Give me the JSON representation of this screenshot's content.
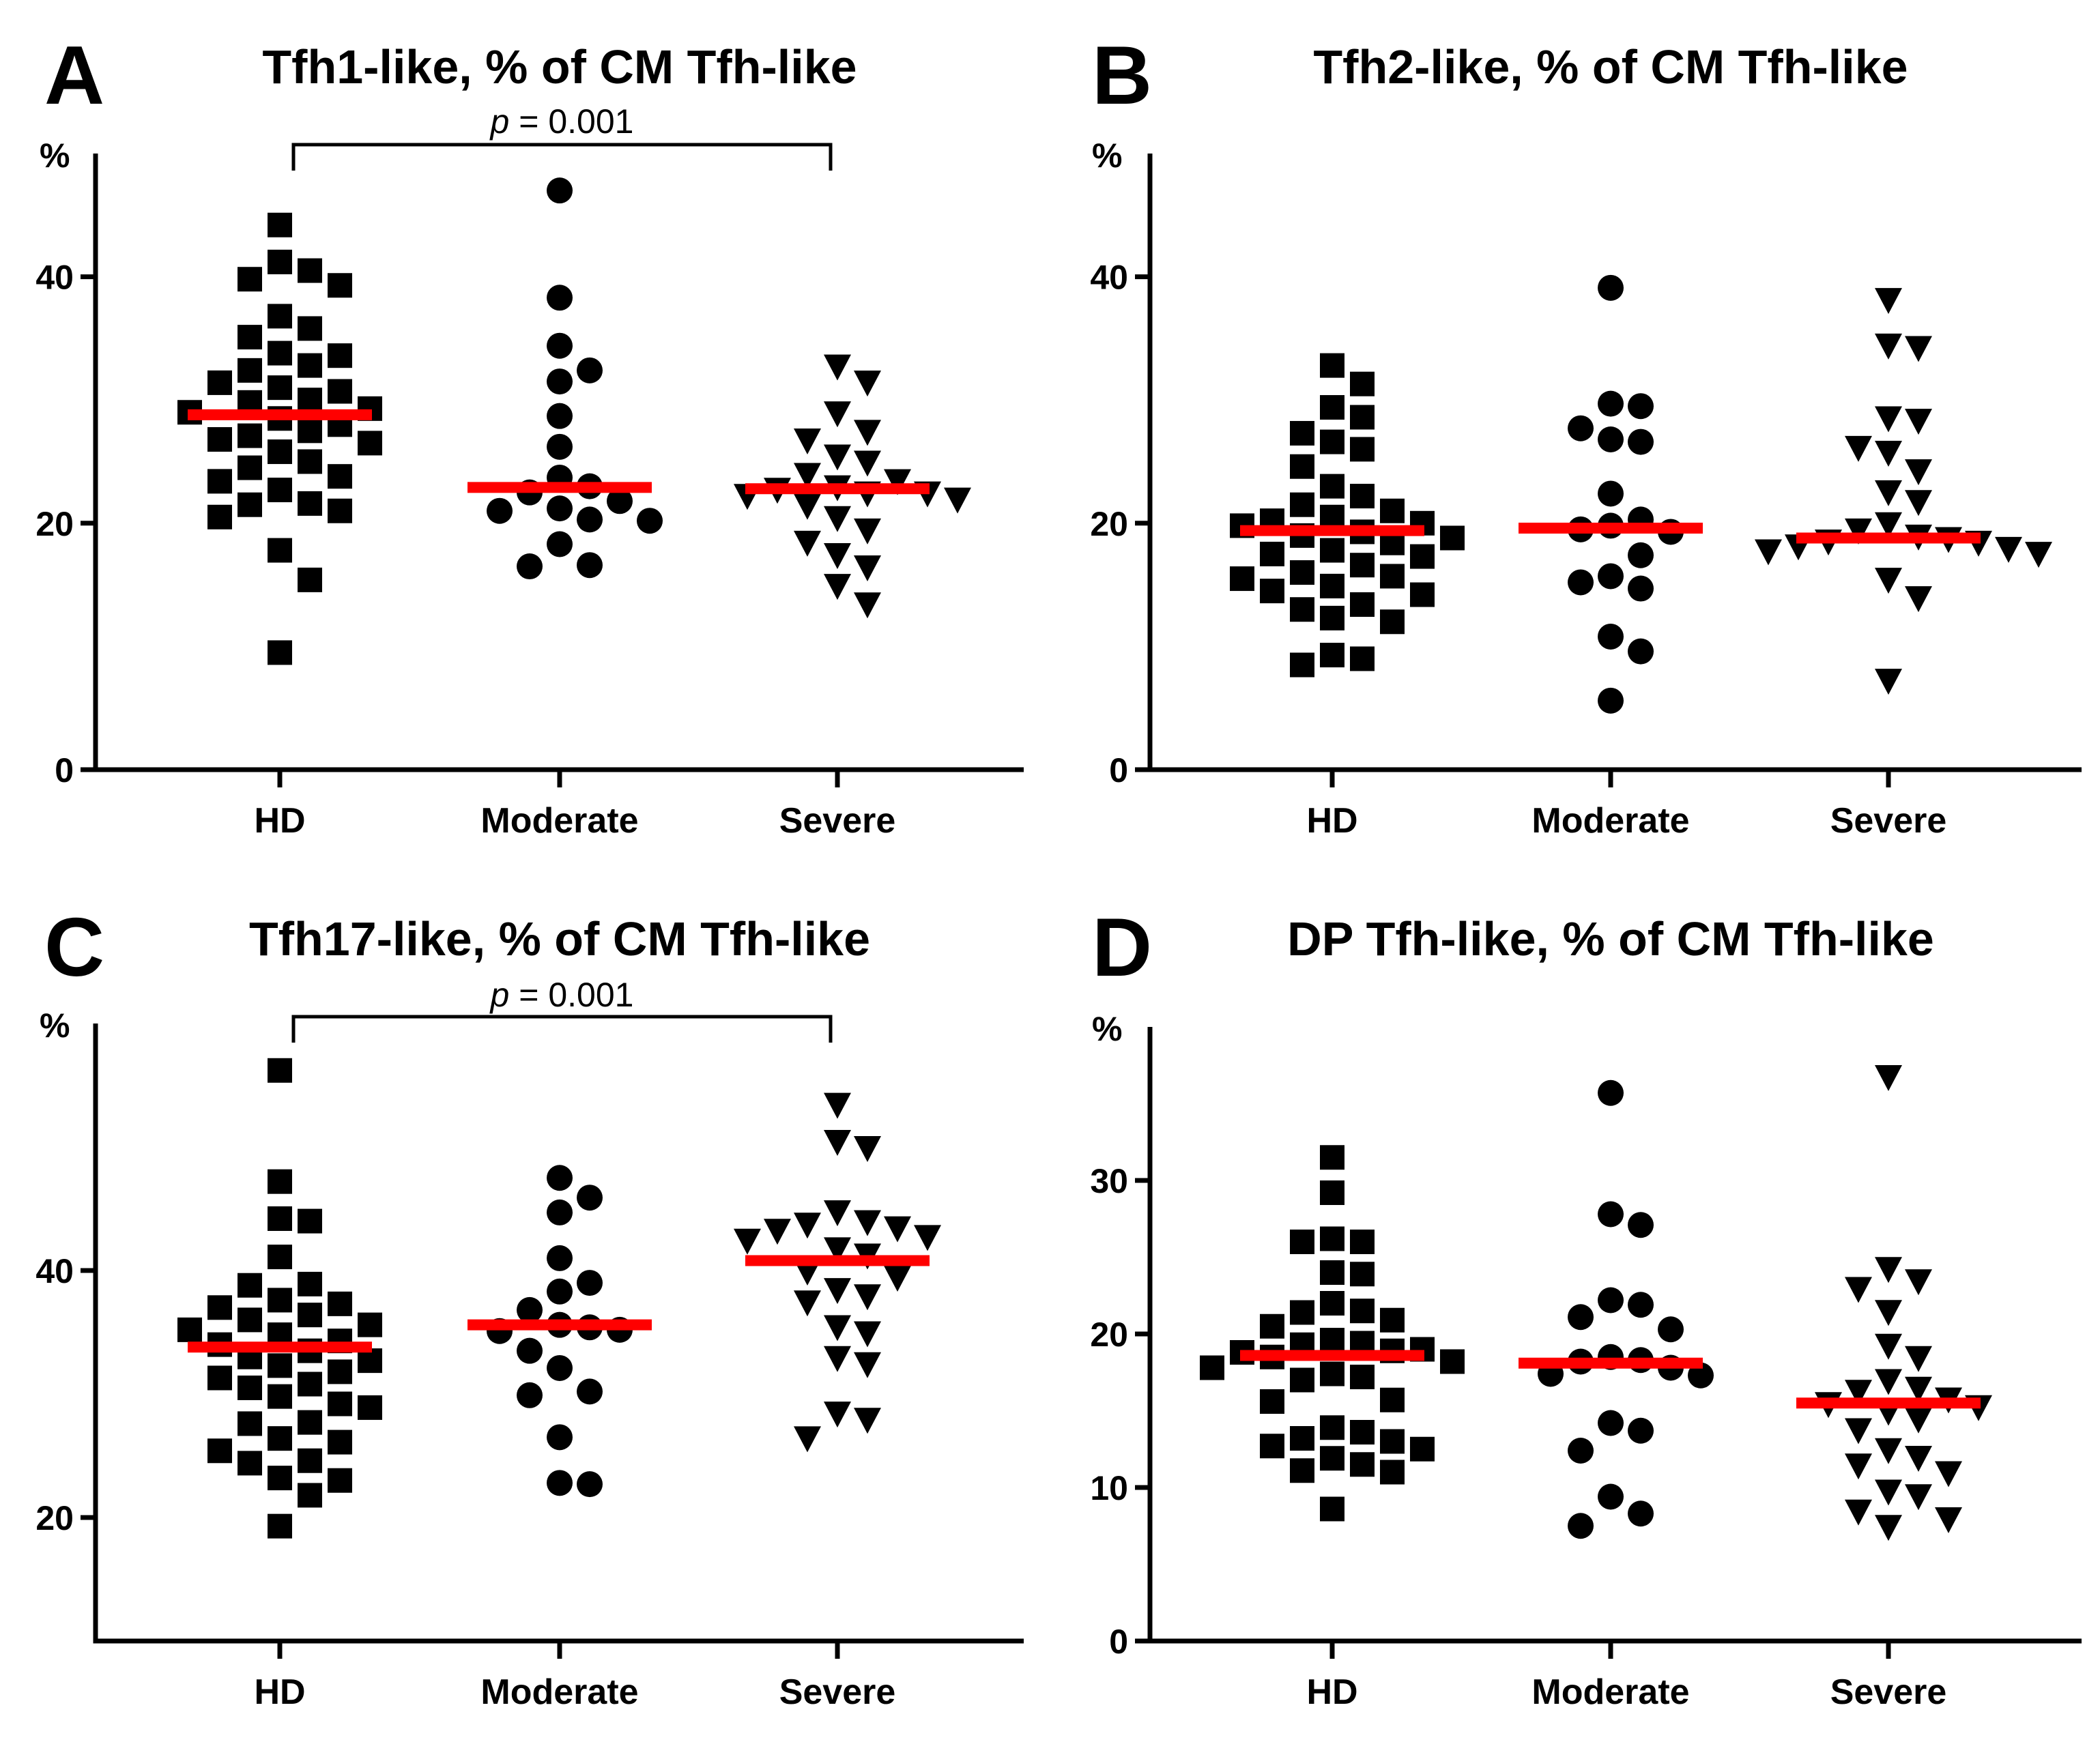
{
  "colors": {
    "points": "#000000",
    "median": "#ff0000",
    "axis": "#000000"
  },
  "chart_data": [
    {
      "type": "scatter",
      "letter": "A",
      "title": "Tfh1-like, % of CM Tfh-like",
      "ylabel": "%",
      "categories": [
        "HD",
        "Moderate",
        "Severe"
      ],
      "ylim": [
        0,
        50
      ],
      "yticks": [
        0,
        20,
        40
      ],
      "ytick_labels": [
        "0",
        "20",
        "40"
      ],
      "marker_symbols": [
        "square-icon",
        "circle-icon",
        "triangle-down-icon"
      ],
      "significance": {
        "text": "p = 0.001",
        "italic": "p",
        "from": "HD",
        "to": "Severe"
      },
      "series": [
        {
          "name": "HD",
          "median": 28.8,
          "values": [
            44.2,
            41.2,
            40.5,
            39.8,
            39.3,
            36.8,
            35.8,
            35.1,
            33.8,
            33.6,
            32.8,
            32.4,
            31.4,
            31.0,
            30.7,
            30.0,
            29.8,
            29.3,
            29.0,
            28.5,
            28.0,
            27.5,
            27.1,
            26.8,
            26.5,
            25.8,
            25.0,
            24.5,
            23.8,
            23.4,
            22.7,
            21.6,
            21.5,
            21.0,
            20.5,
            17.8,
            15.4,
            9.5
          ]
        },
        {
          "name": "Moderate",
          "median": 22.9,
          "values": [
            47.0,
            38.3,
            34.4,
            32.4,
            31.5,
            28.7,
            26.2,
            23.7,
            23.0,
            22.5,
            21.8,
            21.2,
            21.0,
            20.3,
            20.2,
            18.3,
            16.6,
            16.5
          ]
        },
        {
          "name": "Severe",
          "median": 22.8,
          "values": [
            32.8,
            31.5,
            29.0,
            27.5,
            26.8,
            25.5,
            25.0,
            24.0,
            23.5,
            23.0,
            22.8,
            22.5,
            22.5,
            22.3,
            22.0,
            21.5,
            20.5,
            19.5,
            18.5,
            17.5,
            16.5,
            15.0,
            13.5
          ]
        }
      ]
    },
    {
      "type": "scatter",
      "letter": "B",
      "title": "Tfh2-like, % of CM Tfh-like",
      "ylabel": "%",
      "categories": [
        "HD",
        "Moderate",
        "Severe"
      ],
      "ylim": [
        0,
        50
      ],
      "yticks": [
        0,
        20,
        40
      ],
      "ytick_labels": [
        "0",
        "20",
        "40"
      ],
      "marker_symbols": [
        "square-icon",
        "circle-icon",
        "triangle-down-icon"
      ],
      "series": [
        {
          "name": "HD",
          "median": 19.4,
          "values": [
            32.8,
            31.3,
            29.4,
            28.6,
            27.3,
            26.6,
            26.0,
            24.6,
            23.0,
            22.2,
            21.5,
            21.0,
            20.5,
            20.2,
            20.0,
            19.8,
            19.3,
            19.0,
            18.8,
            18.4,
            17.8,
            17.5,
            17.3,
            16.6,
            16.0,
            15.7,
            15.5,
            14.9,
            14.5,
            14.2,
            13.4,
            13.0,
            12.3,
            12.0,
            9.3,
            9.0,
            8.5
          ]
        },
        {
          "name": "Moderate",
          "median": 19.6,
          "values": [
            39.1,
            29.7,
            29.5,
            27.7,
            26.8,
            26.6,
            22.4,
            20.3,
            19.8,
            19.5,
            19.3,
            17.4,
            15.7,
            15.2,
            14.7,
            10.8,
            9.6,
            5.6
          ]
        },
        {
          "name": "Severe",
          "median": 18.8,
          "values": [
            38.2,
            34.5,
            34.3,
            28.6,
            28.4,
            26.2,
            25.8,
            24.3,
            22.6,
            21.8,
            20.0,
            19.5,
            19.0,
            18.8,
            18.6,
            18.5,
            18.2,
            18.0,
            17.8,
            17.6,
            15.5,
            14.0,
            7.3
          ]
        }
      ]
    },
    {
      "type": "scatter",
      "letter": "C",
      "title": "Tfh17-like, % of CM Tfh-like",
      "ylabel": "%",
      "categories": [
        "HD",
        "Moderate",
        "Severe"
      ],
      "ylim": [
        10,
        60
      ],
      "yticks": [
        20,
        40
      ],
      "ytick_labels": [
        "20",
        "40"
      ],
      "marker_symbols": [
        "square-icon",
        "circle-icon",
        "triangle-down-icon"
      ],
      "significance": {
        "text": "p = 0.001",
        "italic": "p",
        "from": "HD",
        "to": "Severe"
      },
      "series": [
        {
          "name": "HD",
          "median": 33.8,
          "values": [
            56.2,
            47.2,
            44.2,
            44.0,
            41.1,
            38.9,
            38.8,
            37.6,
            37.3,
            37.0,
            36.4,
            36.0,
            35.6,
            35.2,
            34.8,
            34.3,
            34.0,
            33.5,
            33.0,
            32.7,
            32.3,
            31.8,
            31.3,
            30.8,
            30.5,
            29.8,
            29.2,
            28.9,
            27.7,
            27.6,
            26.4,
            26.1,
            25.4,
            24.6,
            24.4,
            23.2,
            23.0,
            21.8,
            19.3
          ]
        },
        {
          "name": "Moderate",
          "median": 35.6,
          "values": [
            47.5,
            45.9,
            44.7,
            41.0,
            39.0,
            38.3,
            36.8,
            35.6,
            35.4,
            35.2,
            35.1,
            33.5,
            32.1,
            30.2,
            29.9,
            26.5,
            22.8,
            22.7
          ]
        },
        {
          "name": "Severe",
          "median": 40.8,
          "values": [
            53.5,
            50.5,
            50.0,
            44.8,
            44.0,
            43.8,
            43.5,
            43.3,
            42.8,
            42.5,
            41.8,
            41.3,
            40.0,
            39.5,
            38.5,
            38.0,
            37.5,
            35.5,
            35.0,
            33.0,
            32.5,
            28.5,
            28.0,
            26.5
          ]
        }
      ]
    },
    {
      "type": "scatter",
      "letter": "D",
      "title": "DP Tfh-like, % of CM Tfh-like",
      "ylabel": "%",
      "categories": [
        "HD",
        "Moderate",
        "Severe"
      ],
      "ylim": [
        0,
        40
      ],
      "yticks": [
        0,
        10,
        20,
        30
      ],
      "ytick_labels": [
        "0",
        "10",
        "20",
        "30"
      ],
      "marker_symbols": [
        "square-icon",
        "circle-icon",
        "triangle-down-icon"
      ],
      "series": [
        {
          "name": "HD",
          "median": 18.6,
          "values": [
            31.5,
            29.2,
            26.2,
            26.0,
            26.0,
            24.0,
            23.9,
            22.0,
            21.5,
            21.4,
            20.9,
            20.5,
            19.6,
            19.4,
            19.3,
            19.0,
            18.9,
            18.8,
            18.5,
            18.2,
            17.8,
            17.4,
            17.2,
            17.0,
            15.7,
            15.6,
            13.9,
            13.6,
            13.2,
            13.0,
            12.7,
            12.5,
            11.9,
            11.5,
            11.1,
            11.0,
            8.6
          ]
        },
        {
          "name": "Moderate",
          "median": 18.1,
          "values": [
            35.7,
            27.8,
            27.1,
            22.2,
            21.9,
            21.1,
            20.3,
            18.5,
            18.3,
            18.2,
            17.8,
            17.4,
            17.3,
            14.2,
            13.7,
            12.4,
            9.4,
            8.3,
            7.5
          ]
        },
        {
          "name": "Severe",
          "median": 15.5,
          "values": [
            36.8,
            24.3,
            23.5,
            23.0,
            21.5,
            19.3,
            18.5,
            17.0,
            16.5,
            16.3,
            15.8,
            15.5,
            15.3,
            15.0,
            14.5,
            13.8,
            12.5,
            12.0,
            11.5,
            11.0,
            9.8,
            9.5,
            8.5,
            8.0,
            7.5
          ]
        }
      ]
    }
  ]
}
